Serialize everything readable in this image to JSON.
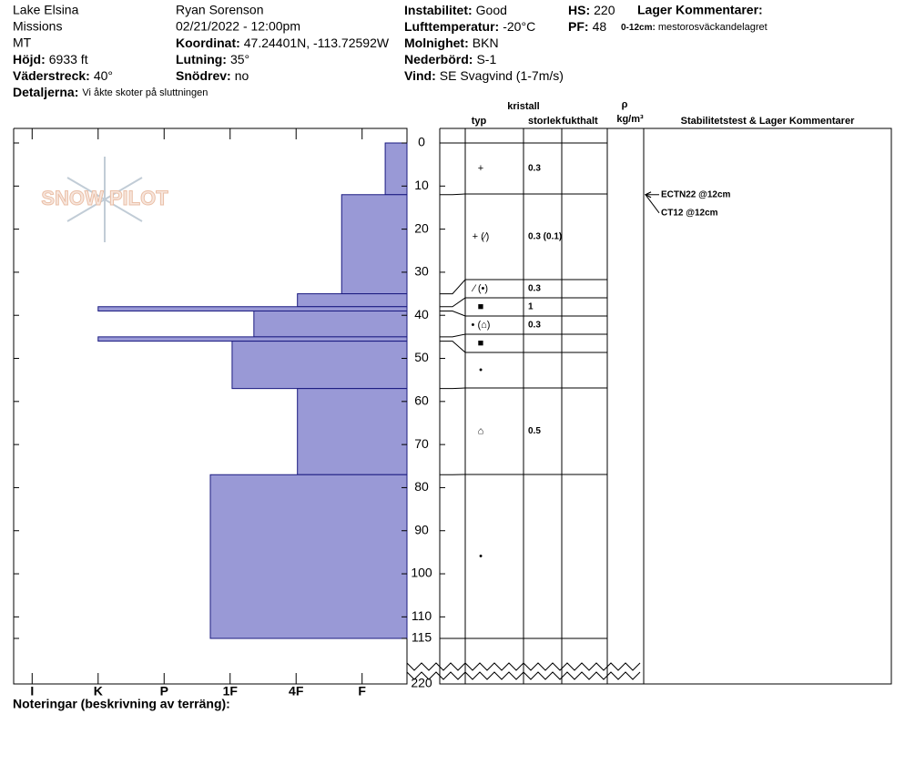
{
  "header": {
    "location": "Lake Elsina",
    "range": "Missions",
    "state": "MT",
    "elevation": {
      "label": "Höjd:",
      "value": "6933 ft"
    },
    "aspect": {
      "label": "Väderstreck:",
      "value": "40°"
    },
    "details": {
      "label": "Detaljerna:",
      "value": "Vi åkte skoter på sluttningen"
    },
    "observer": "Ryan Sorenson",
    "datetime": "02/21/2022 - 12:00pm",
    "coordinates": {
      "label": "Koordinat:",
      "value": "47.24401N, -113.72592W"
    },
    "slope": {
      "label": "Lutning:",
      "value": "35°"
    },
    "snow_drift": {
      "label": "Snödrev:",
      "value": "no"
    },
    "stability": {
      "label": "Instabilitet:",
      "value": "Good"
    },
    "air_temp": {
      "label": "Lufttemperatur:",
      "value": "-20°C"
    },
    "sky": {
      "label": "Molnighet:",
      "value": "BKN"
    },
    "precip": {
      "label": "Nederbörd:",
      "value": "S-1"
    },
    "wind": {
      "label": "Vind:",
      "value": "SE  Svagvind (1-7m/s)"
    },
    "hs": {
      "label": "HS:",
      "value": "220"
    },
    "pf": {
      "label": "PF:",
      "value": "48"
    },
    "layer_comments_title": "Lager Kommentarer:",
    "layer_comment": {
      "label": "0-12cm:",
      "value": "mestorosväckandelagret"
    }
  },
  "logo": "SNOW PILOT",
  "chart_data": {
    "type": "snow-profile",
    "ylim": [
      0,
      115
    ],
    "yticks": [
      0,
      10,
      20,
      30,
      40,
      50,
      60,
      70,
      80,
      90,
      100,
      110,
      115
    ],
    "y_break_tick": 220,
    "xlim": [
      0.32,
      6.28
    ],
    "xticks": [
      {
        "value": 1,
        "label": "F"
      },
      {
        "value": 2,
        "label": "4F"
      },
      {
        "value": 3,
        "label": "1F"
      },
      {
        "value": 4,
        "label": "P"
      },
      {
        "value": 5,
        "label": "K"
      },
      {
        "value": 6,
        "label": "I"
      }
    ],
    "color": "#9999d6",
    "columns": {
      "crystal": "kristall",
      "type": "typ",
      "size": "storlek",
      "moisture": "fukthalt",
      "density_symbol": "ρ",
      "density_unit": "kg/m³",
      "tests": "Stabilitetstest & Lager Kommentarer"
    },
    "layers": [
      {
        "top": 0,
        "bottom": 12,
        "hardness": 0.65,
        "crystal": "+",
        "size": "0.3"
      },
      {
        "top": 12,
        "bottom": 35,
        "hardness": 1.31,
        "crystal": "+ (⁄)",
        "size": "0.3 (0.1)"
      },
      {
        "top": 35,
        "bottom": 38,
        "hardness": 1.98,
        "crystal": "⁄ (•)",
        "size": "0.3"
      },
      {
        "top": 38,
        "bottom": 39,
        "hardness": 5,
        "crystal": "■",
        "size": "1"
      },
      {
        "top": 39,
        "bottom": 45,
        "hardness": 2.64,
        "crystal": "• (⌂)",
        "size": "0.3"
      },
      {
        "top": 45,
        "bottom": 46,
        "hardness": 5,
        "crystal": "■"
      },
      {
        "top": 46,
        "bottom": 57,
        "hardness": 2.97,
        "crystal": "•"
      },
      {
        "top": 57,
        "bottom": 77,
        "hardness": 1.98,
        "crystal": "⌂",
        "size": "0.5"
      },
      {
        "top": 77,
        "bottom": 115,
        "hardness": 3.3,
        "crystal": "•"
      }
    ],
    "tests": [
      {
        "label": "ECTN22 @12cm",
        "depth": 12
      },
      {
        "label": "CT12 @12cm",
        "depth": 12
      }
    ]
  },
  "notes_label": "Noteringar (beskrivning av terräng):"
}
